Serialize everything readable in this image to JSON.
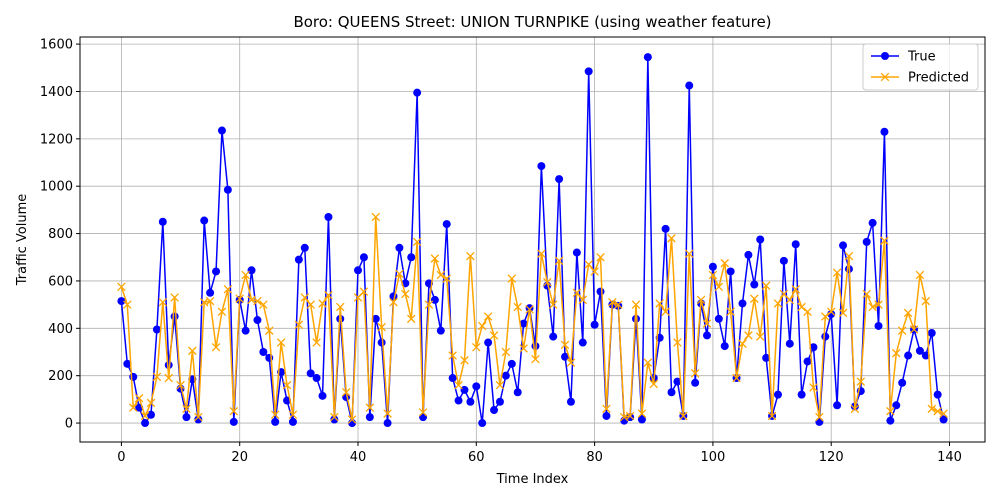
{
  "chart_data": {
    "type": "line",
    "title": "Boro: QUEENS Street: UNION TURNPIKE (using weather feature)",
    "xlabel": "Time Index",
    "ylabel": "Traffic Volume",
    "xlim": [
      -7,
      146
    ],
    "ylim": [
      -80,
      1630
    ],
    "xticks": [
      0,
      20,
      40,
      60,
      80,
      100,
      120,
      140
    ],
    "yticks": [
      0,
      200,
      400,
      600,
      800,
      1000,
      1200,
      1400,
      1600
    ],
    "grid": true,
    "legend_position": "top-right",
    "series": [
      {
        "name": "True",
        "color": "#0000ff",
        "marker": "circle",
        "values": [
          515,
          250,
          195,
          65,
          0,
          35,
          395,
          850,
          245,
          450,
          145,
          25,
          185,
          15,
          855,
          550,
          640,
          1235,
          985,
          5,
          520,
          390,
          645,
          435,
          300,
          275,
          5,
          215,
          95,
          5,
          690,
          740,
          210,
          190,
          115,
          870,
          15,
          440,
          110,
          0,
          645,
          700,
          25,
          440,
          340,
          0,
          535,
          740,
          590,
          700,
          1395,
          25,
          590,
          520,
          390,
          840,
          190,
          95,
          140,
          90,
          155,
          0,
          340,
          55,
          90,
          200,
          250,
          130,
          420,
          485,
          325,
          1085,
          580,
          365,
          1030,
          280,
          90,
          720,
          340,
          1485,
          415,
          555,
          30,
          500,
          495,
          10,
          25,
          440,
          15,
          1545,
          190,
          360,
          820,
          130,
          175,
          30,
          1425,
          170,
          505,
          370,
          660,
          440,
          325,
          640,
          190,
          505,
          710,
          585,
          775,
          275,
          30,
          120,
          685,
          335,
          755,
          120,
          260,
          320,
          5,
          365,
          460,
          75,
          750,
          650,
          70,
          135,
          765,
          845,
          410,
          1230,
          10,
          75,
          170,
          285,
          395,
          305,
          285,
          380,
          120,
          15
        ]
      },
      {
        "name": "Predicted",
        "color": "#ffa500",
        "marker": "x",
        "values": [
          575,
          500,
          65,
          105,
          30,
          85,
          195,
          510,
          190,
          530,
          160,
          60,
          305,
          25,
          510,
          515,
          320,
          470,
          565,
          50,
          525,
          625,
          520,
          515,
          500,
          390,
          35,
          340,
          160,
          35,
          415,
          530,
          500,
          340,
          505,
          540,
          25,
          490,
          130,
          15,
          530,
          555,
          65,
          870,
          405,
          40,
          510,
          630,
          545,
          440,
          765,
          45,
          500,
          695,
          625,
          610,
          285,
          160,
          265,
          705,
          320,
          410,
          450,
          370,
          160,
          300,
          610,
          490,
          315,
          480,
          270,
          715,
          595,
          500,
          685,
          330,
          255,
          550,
          520,
          670,
          640,
          700,
          60,
          510,
          500,
          25,
          30,
          500,
          40,
          255,
          165,
          505,
          470,
          780,
          340,
          30,
          715,
          210,
          520,
          420,
          625,
          575,
          675,
          470,
          190,
          335,
          370,
          525,
          365,
          580,
          30,
          505,
          545,
          520,
          565,
          490,
          470,
          150,
          25,
          450,
          470,
          635,
          465,
          705,
          60,
          175,
          545,
          490,
          500,
          770,
          50,
          295,
          390,
          465,
          395,
          625,
          515,
          60,
          50,
          40
        ]
      }
    ]
  }
}
